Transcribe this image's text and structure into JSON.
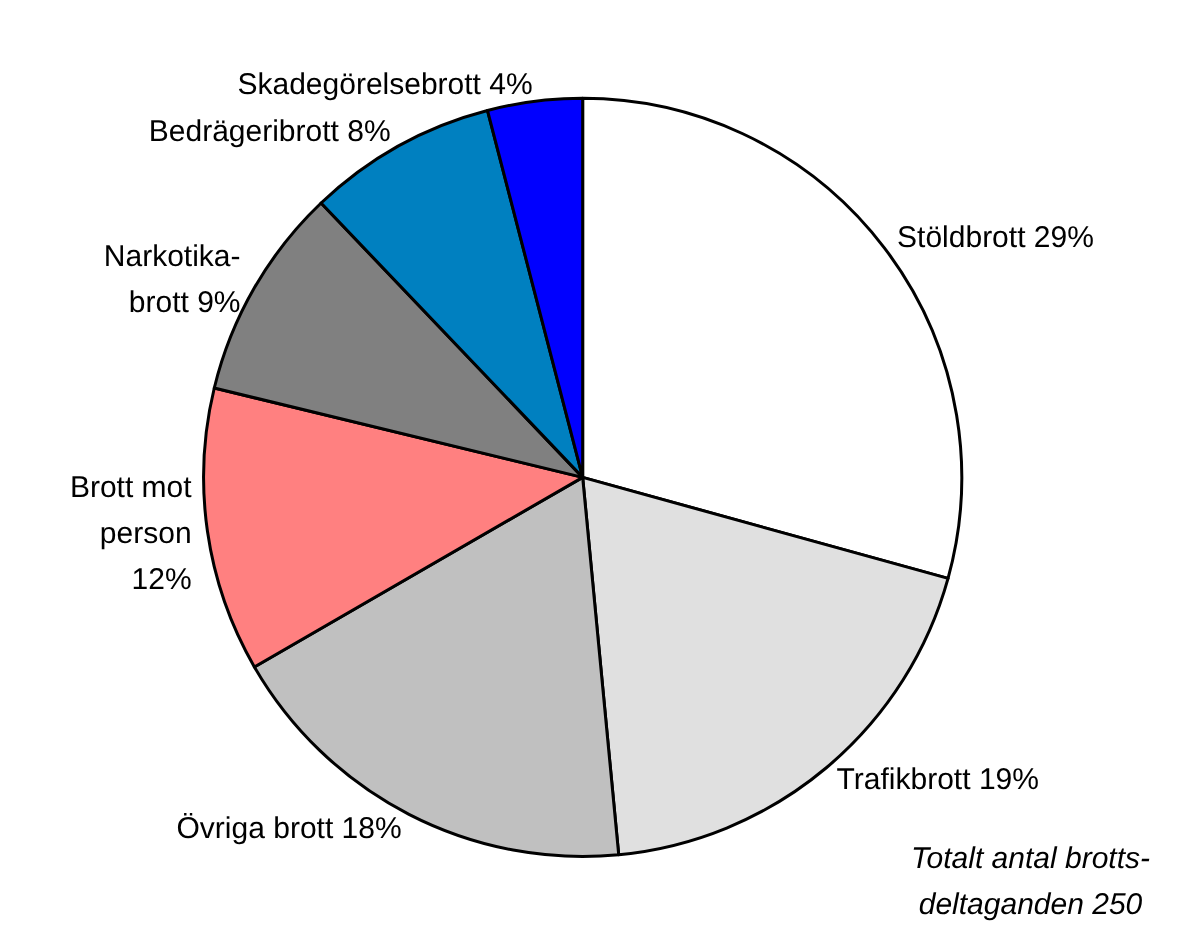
{
  "chart_data": {
    "type": "pie",
    "categories": [
      "Stöldbrott",
      "Trafikbrott",
      "Övriga brott",
      "Brott mot\nperson",
      "Narkotika-\nbrott",
      "Bedrägeribrott",
      "Skadegörelsebrott"
    ],
    "values": [
      29,
      19,
      18,
      12,
      9,
      8,
      4
    ],
    "value_labels": [
      "29%",
      "19%",
      "18%",
      "12%",
      "9%",
      "8%",
      "4%"
    ],
    "colors": [
      "#ffffff",
      "#e0e0e0",
      "#c0c0c0",
      "#ff8080",
      "#808080",
      "#0080c0",
      "#0000ff"
    ],
    "annotations": [
      "Totalt antal brotts-\ndeltaganden 250"
    ],
    "legend": false
  }
}
